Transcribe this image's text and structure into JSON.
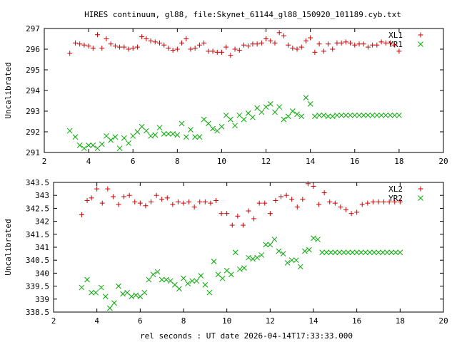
{
  "figure": {
    "title": "HIRES continuum, gl88, file:Skynet_61144_gl88_150920_101189.cyb.txt",
    "xlabel": "rel seconds : UT date 2026-04-14T17:33:33.000"
  },
  "chart_data": [
    {
      "type": "scatter",
      "ylabel": "Uncalibrated",
      "xlim": [
        2,
        20
      ],
      "ylim": [
        291,
        297
      ],
      "x_ticks": [
        2,
        4,
        6,
        8,
        10,
        12,
        14,
        16,
        18,
        20
      ],
      "x_tick_labels": [
        "2",
        "4",
        "6",
        "8",
        "10",
        "12",
        "14",
        "16",
        "18",
        "20"
      ],
      "y_ticks": [
        291,
        292,
        293,
        294,
        295,
        296,
        297
      ],
      "y_tick_labels": [
        "291",
        "292",
        "293",
        "294",
        "295",
        "296",
        "297"
      ],
      "legend_position": "top-right",
      "series": [
        {
          "name": "XL1",
          "color": "#cc0000",
          "marker": "plus",
          "x": [
            3.15,
            3.4,
            3.6,
            3.8,
            4.0,
            4.2,
            4.4,
            4.6,
            4.8,
            5.0,
            5.2,
            5.4,
            5.6,
            5.8,
            6.0,
            6.2,
            6.4,
            6.6,
            6.8,
            7.0,
            7.2,
            7.4,
            7.6,
            7.8,
            8.0,
            8.2,
            8.4,
            8.6,
            8.8,
            9.0,
            9.2,
            9.4,
            9.6,
            9.8,
            10.0,
            10.2,
            10.4,
            10.6,
            10.8,
            11.0,
            11.2,
            11.4,
            11.6,
            11.8,
            12.0,
            12.2,
            12.4,
            12.6,
            12.8,
            13.0,
            13.2,
            13.4,
            13.6,
            13.8,
            14.0,
            14.2,
            14.4,
            14.6,
            14.8,
            15.0,
            15.2,
            15.4,
            15.6,
            15.8,
            16.0,
            16.2,
            16.4,
            16.6,
            16.8,
            17.0,
            17.2,
            17.4,
            17.6,
            17.8,
            18.0
          ],
          "y": [
            295.8,
            296.3,
            296.25,
            296.2,
            296.15,
            296.05,
            296.7,
            296.05,
            296.5,
            296.25,
            296.15,
            296.1,
            296.1,
            296.0,
            296.05,
            296.1,
            296.6,
            296.5,
            296.4,
            296.35,
            296.3,
            296.2,
            296.05,
            295.95,
            296.0,
            296.3,
            296.5,
            296.0,
            296.05,
            296.2,
            296.3,
            295.9,
            295.9,
            295.85,
            295.85,
            296.1,
            295.7,
            296.0,
            295.95,
            296.2,
            296.15,
            296.25,
            296.25,
            296.3,
            296.5,
            296.4,
            296.3,
            296.8,
            296.65,
            296.2,
            296.05,
            296.0,
            296.1,
            296.4,
            296.55,
            295.85,
            296.25,
            295.9,
            296.25,
            296.0,
            296.3,
            296.3,
            296.35,
            296.3,
            296.2,
            296.25,
            296.25,
            296.1,
            296.2,
            296.2,
            296.35,
            296.3,
            296.3,
            296.2,
            295.9
          ]
        },
        {
          "name": "YR1",
          "color": "#00aa00",
          "marker": "cross",
          "x": [
            3.15,
            3.4,
            3.6,
            3.8,
            4.0,
            4.2,
            4.4,
            4.6,
            4.8,
            5.0,
            5.2,
            5.4,
            5.6,
            5.8,
            6.0,
            6.2,
            6.4,
            6.6,
            6.8,
            7.0,
            7.2,
            7.4,
            7.6,
            7.8,
            8.0,
            8.2,
            8.4,
            8.6,
            8.8,
            9.0,
            9.2,
            9.4,
            9.6,
            9.8,
            10.0,
            10.2,
            10.4,
            10.6,
            10.8,
            11.0,
            11.2,
            11.4,
            11.6,
            11.8,
            12.0,
            12.2,
            12.4,
            12.6,
            12.8,
            13.0,
            13.2,
            13.4,
            13.6,
            13.8,
            14.0,
            14.2,
            14.4,
            14.6,
            14.8,
            15.0,
            15.2,
            15.4,
            15.6,
            15.8,
            16.0,
            16.2,
            16.4,
            16.6,
            16.8,
            17.0,
            17.2,
            17.4,
            17.6,
            17.8,
            18.0
          ],
          "y": [
            292.05,
            291.75,
            291.35,
            291.2,
            291.35,
            291.35,
            291.2,
            291.4,
            291.8,
            291.6,
            291.75,
            291.2,
            291.7,
            291.45,
            291.8,
            292.0,
            292.25,
            292.05,
            291.8,
            291.85,
            292.2,
            291.9,
            291.9,
            291.9,
            291.85,
            292.4,
            291.75,
            292.1,
            291.75,
            291.75,
            292.6,
            292.4,
            292.15,
            292.05,
            292.25,
            292.8,
            292.6,
            292.3,
            292.8,
            292.6,
            292.9,
            292.7,
            293.15,
            292.95,
            293.2,
            293.35,
            292.95,
            293.2,
            292.6,
            292.75,
            293.0,
            292.85,
            292.75,
            293.65,
            293.35,
            292.75,
            292.8,
            292.8,
            292.75,
            292.75,
            292.8,
            292.8,
            292.8,
            292.8,
            292.8,
            292.8,
            292.8,
            292.8,
            292.8,
            292.8,
            292.8,
            292.8,
            292.8,
            292.8,
            292.8
          ]
        }
      ]
    },
    {
      "type": "scatter",
      "ylabel": "Uncalibrated",
      "xlim": [
        2,
        20
      ],
      "ylim": [
        338.5,
        343.5
      ],
      "x_ticks": [
        2,
        4,
        6,
        8,
        10,
        12,
        14,
        16,
        18,
        20
      ],
      "x_tick_labels": [
        "2",
        "4",
        "6",
        "8",
        "10",
        "12",
        "14",
        "16",
        "18",
        "20"
      ],
      "y_ticks": [
        338.5,
        339,
        339.5,
        340,
        340.5,
        341,
        341.5,
        342,
        342.5,
        343,
        343.5
      ],
      "y_tick_labels": [
        "338.5",
        "339",
        "339.5",
        "340",
        "340.5",
        "341",
        "341.5",
        "342",
        "342.5",
        "343",
        "343.5"
      ],
      "legend_position": "top-right",
      "series": [
        {
          "name": "XL2",
          "color": "#cc0000",
          "marker": "plus",
          "x": [
            3.3,
            3.55,
            3.75,
            4.0,
            4.25,
            4.5,
            4.75,
            5.0,
            5.25,
            5.5,
            5.75,
            6.0,
            6.25,
            6.5,
            6.75,
            7.0,
            7.25,
            7.5,
            7.75,
            8.0,
            8.25,
            8.5,
            8.75,
            9.0,
            9.25,
            9.5,
            9.75,
            10.0,
            10.25,
            10.5,
            10.75,
            11.0,
            11.25,
            11.5,
            11.75,
            12.0,
            12.25,
            12.5,
            12.75,
            13.0,
            13.25,
            13.5,
            13.75,
            14.0,
            14.25,
            14.5,
            14.75,
            15.0,
            15.25,
            15.5,
            15.75,
            16.0,
            16.25,
            16.5,
            16.75,
            17.0,
            17.25,
            17.5,
            17.75,
            18.0
          ],
          "y": [
            342.25,
            342.8,
            342.9,
            343.25,
            342.7,
            343.25,
            342.95,
            342.65,
            342.95,
            343.0,
            342.75,
            342.7,
            342.6,
            342.75,
            343.0,
            342.85,
            342.9,
            342.65,
            342.75,
            342.7,
            342.75,
            342.55,
            342.75,
            342.75,
            342.7,
            342.8,
            342.3,
            342.3,
            341.85,
            342.2,
            341.85,
            342.4,
            342.1,
            342.7,
            342.7,
            342.3,
            342.8,
            342.95,
            343.0,
            342.85,
            342.55,
            342.85,
            343.45,
            343.35,
            342.65,
            343.1,
            342.75,
            342.7,
            342.55,
            342.45,
            342.3,
            342.35,
            342.65,
            342.7,
            342.75,
            342.75,
            342.75,
            342.75,
            342.75,
            342.75
          ],
          "x_fix": true
        },
        {
          "name": "YR2",
          "color": "#00aa00",
          "marker": "cross",
          "x": [
            3.3,
            3.55,
            3.75,
            3.95,
            4.2,
            4.4,
            4.6,
            4.8,
            5.0,
            5.2,
            5.4,
            5.6,
            5.8,
            6.0,
            6.2,
            6.4,
            6.6,
            6.8,
            7.0,
            7.2,
            7.4,
            7.6,
            7.8,
            8.0,
            8.2,
            8.4,
            8.6,
            8.8,
            9.0,
            9.2,
            9.4,
            9.6,
            9.8,
            10.0,
            10.2,
            10.4,
            10.6,
            10.8,
            11.0,
            11.2,
            11.4,
            11.6,
            11.8,
            12.0,
            12.2,
            12.4,
            12.6,
            12.8,
            13.0,
            13.2,
            13.4,
            13.6,
            13.8,
            14.0,
            14.2,
            14.4,
            14.6,
            14.8,
            15.0,
            15.2,
            15.4,
            15.6,
            15.8,
            16.0,
            16.2,
            16.4,
            16.6,
            16.8,
            17.0,
            17.2,
            17.4,
            17.6,
            17.8,
            18.0
          ],
          "y": [
            339.45,
            339.75,
            339.25,
            339.25,
            339.45,
            339.1,
            338.65,
            338.85,
            339.5,
            339.2,
            339.25,
            339.1,
            339.15,
            339.1,
            339.25,
            339.75,
            339.95,
            340.05,
            339.75,
            339.75,
            339.7,
            339.55,
            339.4,
            339.8,
            339.6,
            339.7,
            339.7,
            339.9,
            339.55,
            339.25,
            340.45,
            339.95,
            339.8,
            340.1,
            339.95,
            340.8,
            340.15,
            340.2,
            340.6,
            340.55,
            340.6,
            340.7,
            341.1,
            341.1,
            341.3,
            340.85,
            340.75,
            340.4,
            340.5,
            340.5,
            340.25,
            340.85,
            340.9,
            341.35,
            341.3,
            340.8,
            340.8,
            340.8,
            340.8,
            340.8,
            340.8,
            340.8,
            340.8,
            340.8,
            340.8,
            340.8,
            340.8,
            340.8,
            340.8,
            340.8,
            340.8,
            340.8,
            340.8,
            340.8
          ]
        }
      ]
    }
  ]
}
